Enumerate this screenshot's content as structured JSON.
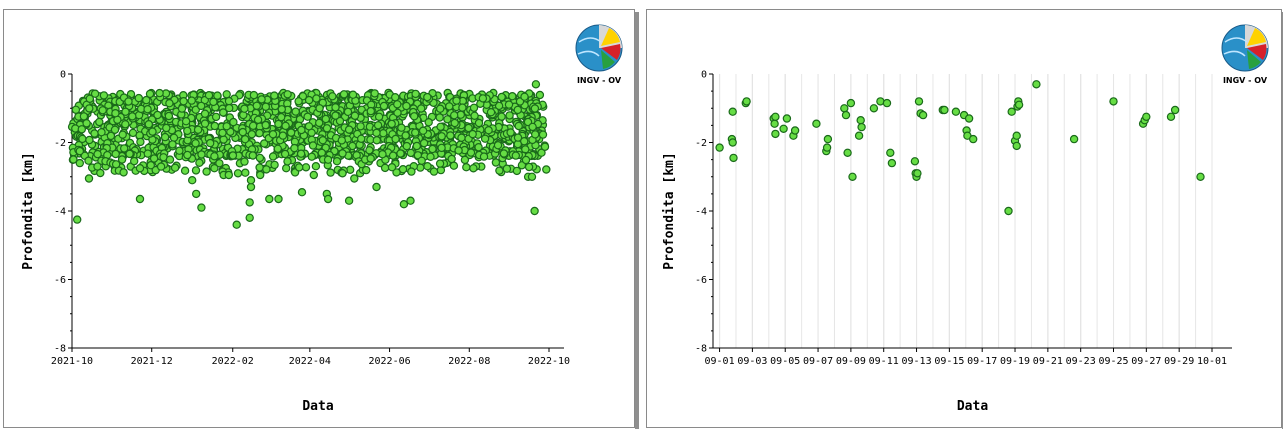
{
  "logo": {
    "text": "INGV - OV"
  },
  "colors": {
    "marker_fill": "#66dd44",
    "marker_stroke": "#1a6a1a",
    "grid": "#d0d0d0",
    "axis": "#000000"
  },
  "chart_data": [
    {
      "type": "scatter",
      "title": "",
      "xlabel": "Data",
      "ylabel": "Profondita [km]",
      "ylim": [
        -8,
        0
      ],
      "yticks": [
        0,
        -2,
        -4,
        -6,
        -8
      ],
      "xticks": [
        "2021-10",
        "2021-12",
        "2022-02",
        "2022-04",
        "2022-06",
        "2022-08",
        "2022-10"
      ],
      "xlim": [
        "2021-10-01",
        "2022-10-31"
      ],
      "grid": false,
      "note": "dense cloud of ~2000 events between about -0.6 and -2.5 km; sparse outliers listed",
      "points": [
        [
          "2021-10-05",
          -4.25
        ],
        [
          "2021-10-07",
          -2.6
        ],
        [
          "2021-10-07",
          -2.25
        ],
        [
          "2021-10-14",
          -3.05
        ],
        [
          "2021-11-22",
          -3.65
        ],
        [
          "2021-11-22",
          -2.75
        ],
        [
          "2021-12-15",
          -2.5
        ],
        [
          "2022-01-01",
          -3.1
        ],
        [
          "2022-01-04",
          -3.5
        ],
        [
          "2022-01-08",
          -3.9
        ],
        [
          "2022-01-12",
          -2.85
        ],
        [
          "2022-01-18",
          -2.75
        ],
        [
          "2022-01-25",
          -2.95
        ],
        [
          "2022-01-29",
          -2.95
        ],
        [
          "2022-02-04",
          -4.4
        ],
        [
          "2022-02-05",
          -2.9
        ],
        [
          "2022-02-14",
          -4.2
        ],
        [
          "2022-02-14",
          -3.75
        ],
        [
          "2022-02-15",
          -3.3
        ],
        [
          "2022-02-15",
          -3.1
        ],
        [
          "2022-02-22",
          -2.95
        ],
        [
          "2022-03-01",
          -3.65
        ],
        [
          "2022-03-08",
          -3.65
        ],
        [
          "2022-03-26",
          -3.45
        ],
        [
          "2022-04-04",
          -2.95
        ],
        [
          "2022-04-14",
          -3.5
        ],
        [
          "2022-04-15",
          -3.65
        ],
        [
          "2022-04-26",
          -2.9
        ],
        [
          "2022-05-01",
          -3.7
        ],
        [
          "2022-05-05",
          -3.05
        ],
        [
          "2022-05-22",
          -3.3
        ],
        [
          "2022-06-12",
          -3.8
        ],
        [
          "2022-06-17",
          -3.7
        ],
        [
          "2022-07-05",
          -2.85
        ],
        [
          "2022-09-15",
          -3.0
        ],
        [
          "2022-09-18",
          -3.0
        ],
        [
          "2022-09-20",
          -4.0
        ],
        [
          "2022-09-21",
          -0.3
        ]
      ],
      "cloud": {
        "x_range": [
          "2021-10-01",
          "2022-09-28"
        ],
        "y_range": [
          -2.4,
          -0.55
        ],
        "count": 1500,
        "sparse_x_range": [
          "2021-10-01",
          "2022-09-30"
        ],
        "sparse_y_range": [
          -2.9,
          -2.3
        ],
        "sparse_count": 200
      }
    },
    {
      "type": "scatter",
      "title": "",
      "xlabel": "Data",
      "ylabel": "Profondita [km]",
      "ylim": [
        -8,
        0
      ],
      "yticks": [
        0,
        -2,
        -4,
        -6,
        -8
      ],
      "xticks": [
        "09-01",
        "09-03",
        "09-05",
        "09-07",
        "09-09",
        "09-11",
        "09-13",
        "09-15",
        "09-17",
        "09-19",
        "09-21",
        "09-23",
        "09-25",
        "09-27",
        "09-29",
        "10-01"
      ],
      "xlim": [
        "08-31",
        "10-01"
      ],
      "grid": true,
      "points": [
        [
          "09-01.0",
          -2.15
        ],
        [
          "09-01.75",
          -1.9
        ],
        [
          "09-01.8",
          -2.0
        ],
        [
          "09-01.8",
          -1.1
        ],
        [
          "09-01.85",
          -2.45
        ],
        [
          "09-02.6",
          -0.85
        ],
        [
          "09-02.65",
          -0.8
        ],
        [
          "09-04.3",
          -1.3
        ],
        [
          "09-04.35",
          -1.45
        ],
        [
          "09-04.4",
          -1.75
        ],
        [
          "09-04.4",
          -1.25
        ],
        [
          "09-04.9",
          -1.6
        ],
        [
          "09-05.1",
          -1.3
        ],
        [
          "09-05.5",
          -1.8
        ],
        [
          "09-05.6",
          -1.65
        ],
        [
          "09-06.9",
          -1.45
        ],
        [
          "09-07.5",
          -2.25
        ],
        [
          "09-07.55",
          -2.15
        ],
        [
          "09-07.6",
          -1.9
        ],
        [
          "09-08.6",
          -1.0
        ],
        [
          "09-08.7",
          -1.2
        ],
        [
          "09-08.8",
          -2.3
        ],
        [
          "09-09.0",
          -0.85
        ],
        [
          "09-09.1",
          -3.0
        ],
        [
          "09-09.5",
          -1.8
        ],
        [
          "09-09.6",
          -1.35
        ],
        [
          "09-09.65",
          -1.55
        ],
        [
          "09-10.4",
          -1.0
        ],
        [
          "09-10.8",
          -0.8
        ],
        [
          "09-11.2",
          -0.85
        ],
        [
          "09-11.4",
          -2.3
        ],
        [
          "09-11.5",
          -2.6
        ],
        [
          "09-12.9",
          -2.55
        ],
        [
          "09-12.95",
          -2.9
        ],
        [
          "09-13.0",
          -3.0
        ],
        [
          "09-13.05",
          -2.9
        ],
        [
          "09-13.15",
          -0.8
        ],
        [
          "09-13.25",
          -1.15
        ],
        [
          "09-13.4",
          -1.2
        ],
        [
          "09-14.6",
          -1.05
        ],
        [
          "09-14.7",
          -1.05
        ],
        [
          "09-15.4",
          -1.1
        ],
        [
          "09-15.9",
          -1.2
        ],
        [
          "09-16.05",
          -1.65
        ],
        [
          "09-16.1",
          -1.8
        ],
        [
          "09-16.2",
          -1.3
        ],
        [
          "09-16.45",
          -1.9
        ],
        [
          "09-18.6",
          -4.0
        ],
        [
          "09-18.8",
          -1.1
        ],
        [
          "09-19.0",
          -1.95
        ],
        [
          "09-19.1",
          -2.1
        ],
        [
          "09-19.1",
          -1.8
        ],
        [
          "09-19.15",
          -0.95
        ],
        [
          "09-19.2",
          -0.8
        ],
        [
          "09-19.25",
          -0.9
        ],
        [
          "09-20.3",
          -0.3
        ],
        [
          "09-22.6",
          -1.9
        ],
        [
          "09-25.0",
          -0.8
        ],
        [
          "09-26.8",
          -1.45
        ],
        [
          "09-26.9",
          -1.35
        ],
        [
          "09-27.0",
          -1.25
        ],
        [
          "09-28.5",
          -1.25
        ],
        [
          "09-28.75",
          -1.05
        ],
        [
          "09-30.3",
          -3.0
        ]
      ]
    }
  ]
}
